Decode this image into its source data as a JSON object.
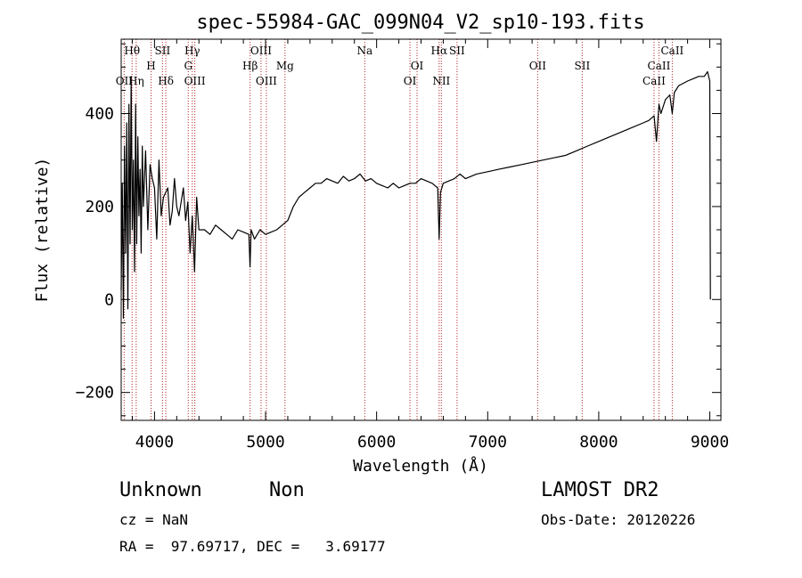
{
  "chart_data": {
    "type": "line",
    "title": "spec-55984-GAC_099N04_V2_sp10-193.fits",
    "xlabel": "Wavelength (Å)",
    "ylabel": "Flux (relative)",
    "xlim": [
      3700,
      9100
    ],
    "ylim": [
      -260,
      560
    ],
    "xticks": [
      4000,
      5000,
      6000,
      7000,
      8000,
      9000
    ],
    "yticks": [
      -200,
      0,
      200,
      400
    ],
    "series": [
      {
        "x": [
          3700,
          3710,
          3720,
          3730,
          3740,
          3750,
          3760,
          3770,
          3780,
          3790,
          3800,
          3810,
          3820,
          3830,
          3840,
          3850,
          3860,
          3870,
          3880,
          3890,
          3900,
          3920,
          3940,
          3960,
          3980,
          4000,
          4020,
          4040,
          4060,
          4080,
          4100,
          4120,
          4140,
          4160,
          4180,
          4200,
          4220,
          4240,
          4260,
          4280,
          4300,
          4320,
          4340,
          4360,
          4380,
          4400,
          4450,
          4500,
          4550,
          4600,
          4650,
          4700,
          4750,
          4800,
          4850,
          4860,
          4870,
          4900,
          4950,
          5000,
          5050,
          5100,
          5150,
          5200,
          5250,
          5300,
          5350,
          5400,
          5450,
          5500,
          5550,
          5600,
          5650,
          5700,
          5750,
          5800,
          5850,
          5900,
          5950,
          6000,
          6050,
          6100,
          6150,
          6200,
          6250,
          6300,
          6350,
          6400,
          6450,
          6500,
          6550,
          6563,
          6575,
          6600,
          6650,
          6700,
          6750,
          6800,
          6900,
          7000,
          7100,
          7200,
          7300,
          7400,
          7500,
          7600,
          7700,
          7800,
          7900,
          8000,
          8100,
          8200,
          8300,
          8400,
          8450,
          8498,
          8520,
          8542,
          8560,
          8600,
          8640,
          8662,
          8680,
          8720,
          8760,
          8800,
          8850,
          8900,
          8950,
          8980,
          9000,
          9005
        ],
        "y": [
          20,
          250,
          -40,
          330,
          100,
          380,
          -20,
          420,
          120,
          480,
          150,
          300,
          60,
          420,
          120,
          350,
          180,
          280,
          100,
          330,
          200,
          320,
          150,
          290,
          260,
          240,
          130,
          300,
          180,
          220,
          230,
          240,
          160,
          190,
          260,
          200,
          180,
          210,
          240,
          170,
          210,
          100,
          180,
          60,
          220,
          150,
          150,
          140,
          160,
          150,
          140,
          130,
          150,
          145,
          140,
          70,
          150,
          130,
          150,
          140,
          145,
          150,
          160,
          170,
          200,
          220,
          230,
          240,
          250,
          250,
          260,
          255,
          250,
          265,
          255,
          260,
          270,
          255,
          260,
          250,
          245,
          240,
          250,
          240,
          245,
          250,
          250,
          260,
          255,
          250,
          240,
          130,
          230,
          250,
          255,
          260,
          270,
          260,
          270,
          275,
          280,
          285,
          290,
          295,
          300,
          305,
          310,
          320,
          330,
          340,
          350,
          360,
          370,
          380,
          385,
          395,
          340,
          420,
          400,
          430,
          440,
          400,
          445,
          460,
          465,
          470,
          475,
          480,
          480,
          490,
          470,
          0
        ]
      }
    ],
    "spectral_lines": [
      {
        "label": "Hθ",
        "x": 3798,
        "row": 0
      },
      {
        "label": "OII",
        "x": 3727,
        "row": 2
      },
      {
        "label": "Hη",
        "x": 3835,
        "row": 2
      },
      {
        "label": "SII",
        "x": 4072,
        "row": 0
      },
      {
        "label": "H",
        "x": 3969,
        "row": 1
      },
      {
        "label": "Hδ",
        "x": 4102,
        "row": 2
      },
      {
        "label": "Hγ",
        "x": 4340,
        "row": 0
      },
      {
        "label": "G",
        "x": 4304,
        "row": 1
      },
      {
        "label": "OIII",
        "x": 4363,
        "row": 2
      },
      {
        "label": "OIII",
        "x": 4959,
        "row": 0
      },
      {
        "label": "Hβ",
        "x": 4861,
        "row": 1
      },
      {
        "label": "OIII",
        "x": 5007,
        "row": 2
      },
      {
        "label": "Mg",
        "x": 5175,
        "row": 1
      },
      {
        "label": "Na",
        "x": 5893,
        "row": 0
      },
      {
        "label": "OI",
        "x": 6364,
        "row": 1
      },
      {
        "label": "OI",
        "x": 6300,
        "row": 2
      },
      {
        "label": "Hα",
        "x": 6563,
        "row": 0
      },
      {
        "label": "SII",
        "x": 6724,
        "row": 0
      },
      {
        "label": "NII",
        "x": 6583,
        "row": 2
      },
      {
        "label": "OII",
        "x": 7450,
        "row": 1
      },
      {
        "label": "SII",
        "x": 7851,
        "row": 1
      },
      {
        "label": "CaII",
        "x": 8662,
        "row": 0
      },
      {
        "label": "CaII",
        "x": 8542,
        "row": 1
      },
      {
        "label": "CaII",
        "x": 8498,
        "row": 2
      }
    ]
  },
  "info": {
    "object_class": "Unknown",
    "subclass": "Non",
    "survey": "LAMOST DR2",
    "redshift": "cz = NaN",
    "obs_date": "Obs-Date: 20120226",
    "coords": "RA =  97.69717, DEC =   3.69177"
  }
}
